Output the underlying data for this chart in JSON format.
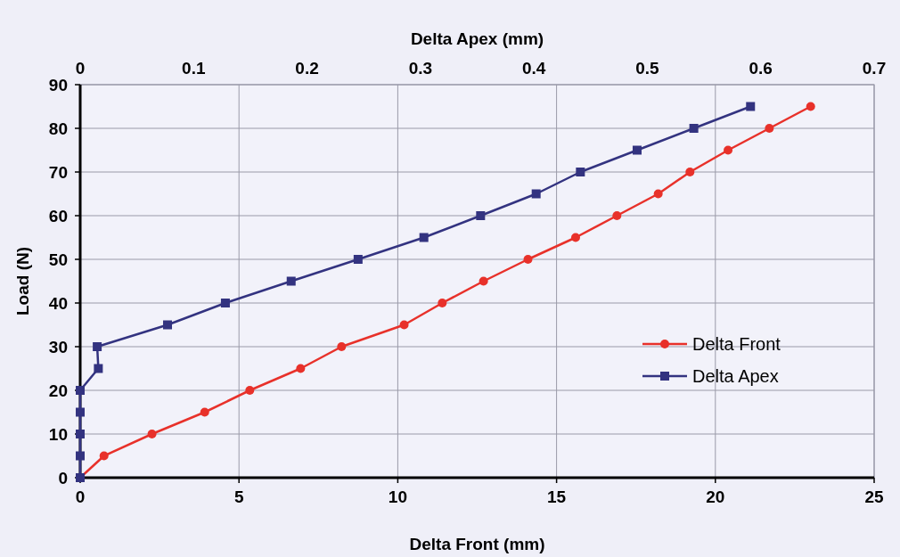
{
  "chart_data": {
    "type": "line",
    "xlabel": "Delta Front (mm)",
    "x2label": "Delta Apex (mm)",
    "ylabel": "Load (N)",
    "xlim": [
      0,
      25
    ],
    "xticks": [
      0,
      5,
      10,
      15,
      20,
      25
    ],
    "x2lim": [
      0,
      0.7
    ],
    "x2ticks": [
      0,
      0.1,
      0.2,
      0.3,
      0.4,
      0.5,
      0.6,
      0.7
    ],
    "ylim": [
      0,
      90
    ],
    "yticks": [
      0,
      10,
      20,
      30,
      40,
      50,
      60,
      70,
      80,
      90
    ],
    "grid": true,
    "legend": "bottom right",
    "line_style": "solid",
    "series": [
      {
        "name": "Delta Front",
        "color": "#e8312a",
        "marker": "circle",
        "x": [
          0,
          0.75,
          2.26,
          3.92,
          5.34,
          6.94,
          8.23,
          10.2,
          11.4,
          12.7,
          14.1,
          15.6,
          16.9,
          18.2,
          19.2,
          20.4,
          21.7,
          23.0
        ],
        "values": [
          0,
          5,
          10,
          15,
          20,
          25,
          30,
          35,
          40,
          45,
          50,
          55,
          60,
          65,
          70,
          75,
          80,
          85
        ]
      },
      {
        "name": "Delta Apex",
        "color": "#333380",
        "marker": "square",
        "axis": "x2",
        "x": [
          0,
          0,
          0,
          0,
          0,
          0.016,
          0.015,
          0.077,
          0.128,
          0.186,
          0.245,
          0.303,
          0.353,
          0.402,
          0.441,
          0.491,
          0.541,
          0.591
        ],
        "values": [
          0,
          5,
          10,
          15,
          20,
          25,
          30,
          35,
          40,
          45,
          50,
          55,
          60,
          65,
          70,
          75,
          80,
          85
        ]
      }
    ]
  }
}
